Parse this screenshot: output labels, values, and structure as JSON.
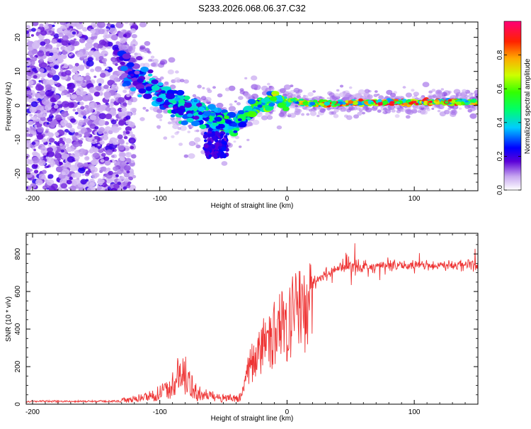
{
  "title": "S233.2026.068.06.37.C32",
  "chart_data": [
    {
      "type": "heatmap",
      "name": "spectrogram",
      "xlabel": "Height of straight line (km)",
      "ylabel": "Frequency (Hz)",
      "xlim": [
        -205,
        150
      ],
      "ylim": [
        -25,
        24.5
      ],
      "xticks": [
        -200,
        -100,
        0,
        100
      ],
      "yticks": [
        -20,
        -10,
        0,
        10,
        20
      ],
      "colorbar": {
        "label": "Normalized spectral amplitude",
        "range": [
          0,
          1
        ],
        "ticks": [
          0.0,
          0.2,
          0.4,
          0.6,
          0.8
        ],
        "tick_labels": [
          "0.0",
          "0.2",
          "0.4",
          "0.6",
          "0.8"
        ]
      },
      "track": {
        "x": [
          -130,
          -120,
          -110,
          -100,
          -90,
          -80,
          -70,
          -60,
          -52,
          -45,
          -40,
          -35,
          -30,
          -25,
          -20,
          -15,
          -10,
          -5,
          0,
          5,
          10,
          20,
          30,
          40,
          60,
          80,
          100,
          120,
          150
        ],
        "y": [
          12,
          9,
          6,
          3.5,
          1,
          -1,
          -2,
          -3.5,
          -5,
          -6,
          -5.5,
          -3,
          -2,
          -1,
          0,
          1,
          2,
          1.5,
          1,
          1.5,
          1,
          0.5,
          0.6,
          0.7,
          0.8,
          0.9,
          1,
          1,
          1
        ],
        "amplitude": [
          0.3,
          0.35,
          0.4,
          0.45,
          0.5,
          0.45,
          0.45,
          0.5,
          0.5,
          0.55,
          0.55,
          0.5,
          0.55,
          0.6,
          0.65,
          0.7,
          0.7,
          0.65,
          0.7,
          0.75,
          0.8,
          0.85,
          0.85,
          0.9,
          0.9,
          0.95,
          0.95,
          0.9,
          0.85
        ]
      }
    },
    {
      "type": "line",
      "name": "snr",
      "xlabel": "Height of straight line (km)",
      "ylabel": "SNR (10 * v/v)",
      "xlim": [
        -205,
        150
      ],
      "ylim": [
        0,
        910
      ],
      "xticks": [
        -200,
        -100,
        0,
        100
      ],
      "yticks": [
        0,
        200,
        400,
        600,
        800
      ],
      "color": "#ee3333",
      "envelope": {
        "x": [
          -205,
          -130,
          -120,
          -110,
          -100,
          -95,
          -90,
          -85,
          -80,
          -75,
          -70,
          -60,
          -50,
          -40,
          -36,
          -33,
          -30,
          -25,
          -20,
          -15,
          -10,
          -5,
          0,
          10,
          20,
          30,
          40,
          50,
          60,
          80,
          100,
          120,
          150
        ],
        "y": [
          18,
          18,
          25,
          40,
          55,
          75,
          100,
          150,
          130,
          90,
          55,
          40,
          30,
          30,
          40,
          120,
          220,
          290,
          340,
          390,
          420,
          460,
          500,
          580,
          650,
          690,
          720,
          740,
          730,
          740,
          740,
          740,
          745
        ]
      }
    }
  ]
}
